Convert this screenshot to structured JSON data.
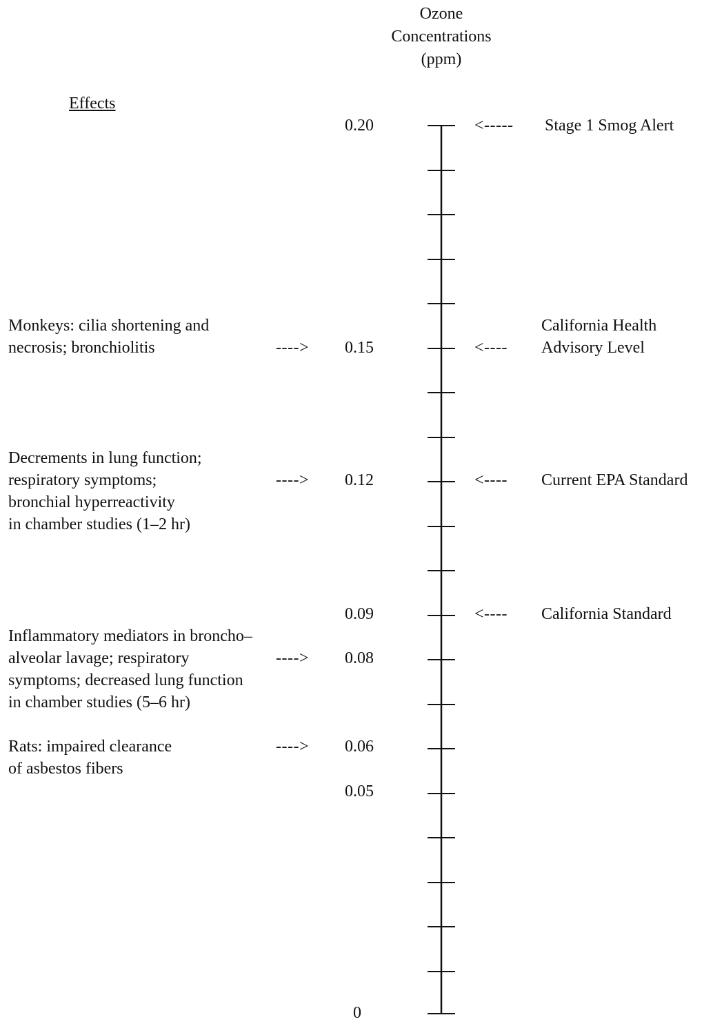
{
  "header": {
    "line1": "Ozone",
    "line2": "Concentrations",
    "line3": "(ppm)"
  },
  "effects_title": "Effects",
  "tick_labels": {
    "t020": "0.20",
    "t015": "0.15",
    "t012": "0.12",
    "t009": "0.09",
    "t008": "0.08",
    "t006": "0.06",
    "t005": "0.05",
    "t000": "0"
  },
  "effects": {
    "monkeys": {
      "line1": "Monkeys: cilia shortening and",
      "line2": "necrosis; bronchiolitis"
    },
    "lung_function": {
      "line1": "Decrements in lung function;",
      "line2": "respiratory symptoms;",
      "line3": "bronchial hyperreactivity",
      "line4": "in chamber studies (1–2 hr)"
    },
    "inflammatory": {
      "line1": "Inflammatory mediators in broncho–",
      "line2": "alveolar lavage; respiratory",
      "line3": "symptoms; decreased lung function",
      "line4": "in chamber studies (5–6 hr)"
    },
    "rats": {
      "line1": "Rats: impaired clearance",
      "line2": "of asbestos fibers"
    }
  },
  "left_arrow": "---->",
  "standards": {
    "smog_alert": {
      "arrow": "<-----",
      "label": "Stage 1 Smog Alert"
    },
    "ca_health": {
      "arrow": "<----",
      "label1": "California Health",
      "label2": "Advisory Level"
    },
    "epa": {
      "arrow": "<----",
      "label": "Current EPA Standard"
    },
    "ca_standard": {
      "arrow": "<----",
      "label": "California Standard"
    }
  }
}
